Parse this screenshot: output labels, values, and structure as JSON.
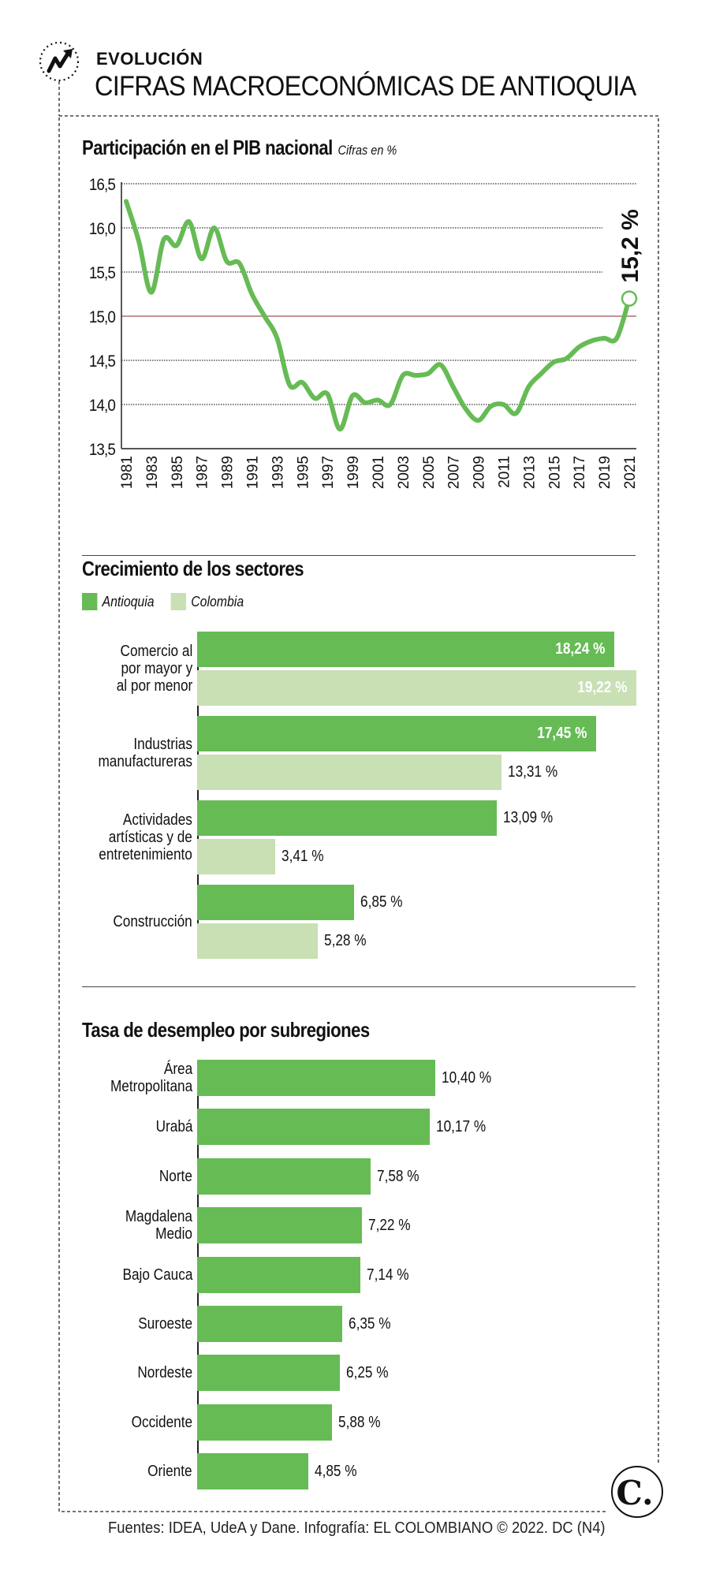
{
  "header": {
    "kicker": "EVOLUCIÓN",
    "headline": "CIFRAS MACROECONÓMICAS DE ANTIOQUIA",
    "icon": "trend-up-arrow-icon"
  },
  "colors": {
    "antioquia": "#66bb55",
    "colombia": "#c8e0b4",
    "reference_line": "#a05050",
    "text": "#111111"
  },
  "pib": {
    "title": "Participación en el PIB nacional",
    "subtitle": "Cifras en %",
    "callout": "15,2 %"
  },
  "sectors": {
    "title": "Crecimiento de los sectores",
    "legend": [
      "Antioquia",
      "Colombia"
    ]
  },
  "unemployment": {
    "title": "Tasa de desempleo por subregiones"
  },
  "footer": {
    "source": "Fuentes: IDEA, UdeA y Dane. Infografía: EL COLOMBIANO © 2022. DC (N4)",
    "logo": "C."
  },
  "chart_data": [
    {
      "type": "line",
      "title": "Participación en el PIB nacional",
      "subtitle": "Cifras en %",
      "xlabel": "",
      "ylabel": "",
      "ylim": [
        13.5,
        16.5
      ],
      "yticks": [
        13.5,
        14.0,
        14.5,
        15.0,
        15.5,
        16.0,
        16.5
      ],
      "ytick_labels": [
        "13,5",
        "14,0",
        "14,5",
        "15,0",
        "15,5",
        "16,0",
        "16,5"
      ],
      "xtick_labels": [
        "1981",
        "1983",
        "1985",
        "1987",
        "1989",
        "1991",
        "1993",
        "1995",
        "1997",
        "1999",
        "2001",
        "2003",
        "2005",
        "2007",
        "2009",
        "2011",
        "2013",
        "2015",
        "2017",
        "2019",
        "2021"
      ],
      "reference_line": 15.0,
      "grid": true,
      "x": [
        1981,
        1982,
        1983,
        1984,
        1985,
        1986,
        1987,
        1988,
        1989,
        1990,
        1991,
        1992,
        1993,
        1994,
        1995,
        1996,
        1997,
        1998,
        1999,
        2000,
        2001,
        2002,
        2003,
        2004,
        2005,
        2006,
        2007,
        2008,
        2009,
        2010,
        2011,
        2012,
        2013,
        2014,
        2015,
        2016,
        2017,
        2018,
        2019,
        2020,
        2021
      ],
      "values": [
        16.3,
        15.85,
        15.27,
        15.87,
        15.8,
        16.07,
        15.65,
        16.0,
        15.62,
        15.6,
        15.25,
        15.0,
        14.75,
        14.22,
        14.25,
        14.07,
        14.12,
        13.72,
        14.1,
        14.02,
        14.05,
        14.0,
        14.33,
        14.33,
        14.35,
        14.45,
        14.2,
        13.95,
        13.82,
        13.98,
        14.0,
        13.9,
        14.2,
        14.35,
        14.48,
        14.52,
        14.65,
        14.72,
        14.75,
        14.75,
        15.2
      ],
      "annotation": {
        "x": 2021,
        "value": 15.2,
        "label": "15,2 %"
      }
    },
    {
      "type": "bar",
      "orientation": "horizontal",
      "title": "Crecimiento de los sectores",
      "categories": [
        "Comercio al\npor mayor y\nal por menor",
        "Industrias\nmanufactureras",
        "Actividades\nartísticas y de\nentretenimiento",
        "Construcción"
      ],
      "series": [
        {
          "name": "Antioquia",
          "values": [
            18.24,
            17.45,
            13.09,
            6.85
          ],
          "labels": [
            "18,24 %",
            "17,45 %",
            "13,09 %",
            "6,85 %"
          ]
        },
        {
          "name": "Colombia",
          "values": [
            19.22,
            13.31,
            3.41,
            5.28
          ],
          "labels": [
            "19,22 %",
            "13,31 %",
            "3,41 %",
            "5,28 %"
          ]
        }
      ],
      "legend": "top-left"
    },
    {
      "type": "bar",
      "orientation": "horizontal",
      "title": "Tasa de desempleo por subregiones",
      "categories": [
        "Área\nMetropolitana",
        "Urabá",
        "Norte",
        "Magdalena\nMedio",
        "Bajo Cauca",
        "Suroeste",
        "Nordeste",
        "Occidente",
        "Oriente"
      ],
      "values": [
        10.4,
        10.17,
        7.58,
        7.22,
        7.14,
        6.35,
        6.25,
        5.88,
        4.85
      ],
      "labels": [
        "10,40 %",
        "10,17 %",
        "7,58 %",
        "7,22 %",
        "7,14 %",
        "6,35 %",
        "6,25 %",
        "5,88 %",
        "4,85 %"
      ]
    }
  ]
}
